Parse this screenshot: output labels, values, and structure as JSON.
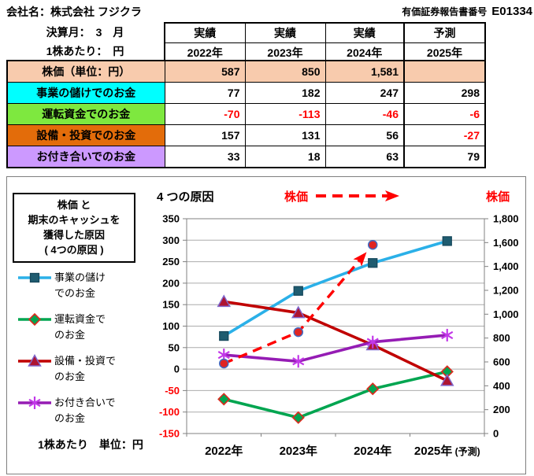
{
  "page": {
    "company_title": "会社名：株式会社 フジクラ",
    "report_label": "有価証券報告書番号",
    "report_number": "E01334",
    "fiscal_month": "決算月：　3　月",
    "per_share": "1株あたり：　円"
  },
  "table": {
    "status_headers": [
      "実績",
      "実績",
      "実績",
      "予測"
    ],
    "year_headers": [
      "2022年",
      "2023年",
      "2024年",
      "2025年"
    ],
    "negative_color": "#FF0000",
    "rows": [
      {
        "label": "株価（単位：円）",
        "bg": "#F8CBAD",
        "row_bg": "#F8CBAD",
        "values": [
          "587",
          "850",
          "1,581",
          ""
        ]
      },
      {
        "label": "事業の儲けでのお金",
        "bg": "#00FFFF",
        "values": [
          "77",
          "182",
          "247",
          "298"
        ]
      },
      {
        "label": "運転資金でのお金",
        "bg": "#7EE83F",
        "values": [
          "-70",
          "-113",
          "-46",
          "-6"
        ]
      },
      {
        "label": "設備・投資でのお金",
        "bg": "#E36C0A",
        "values": [
          "157",
          "131",
          "56",
          "-27"
        ]
      },
      {
        "label": "お付き合いでのお金",
        "bg": "#CC99FF",
        "values": [
          "33",
          "18",
          "63",
          "79"
        ]
      }
    ]
  },
  "legend": {
    "title_line1": "株価 と",
    "title_line2": "期末のキャッシュを",
    "title_line3": "獲得した原因",
    "title_line4": "( 4つの原因 )",
    "items": [
      {
        "line1": "事業の儲け",
        "line2": "でのお金"
      },
      {
        "line1": "運転資金で",
        "line2": "のお金"
      },
      {
        "line1": "設備・投資で",
        "line2": "のお金"
      },
      {
        "line1": "お付き合いで",
        "line2": "のお金"
      }
    ],
    "footer": "1株あたり　単位：円"
  },
  "chart_data": {
    "type": "line",
    "title": "4 つの原因",
    "secondary_title": "株価",
    "right_axis_title": "株価",
    "title_color": "#000000",
    "stock_color": "#FF0000",
    "categories": [
      "2022年",
      "2023年",
      "2024年",
      "2025年 (予測)"
    ],
    "series": [
      {
        "name": "事業の儲けでのお金",
        "axis": "left",
        "marker": "square",
        "line_color": "#2BB0E8",
        "marker_fill": "#1F5C70",
        "marker_stroke": "#16485C",
        "values": [
          77,
          182,
          247,
          298
        ]
      },
      {
        "name": "運転資金でのお金",
        "axis": "left",
        "marker": "diamond",
        "line_color": "#00A550",
        "marker_fill": "#00A550",
        "marker_stroke": "#DD2A1E",
        "values": [
          -70,
          -113,
          -46,
          -6
        ]
      },
      {
        "name": "設備・投資でのお金",
        "axis": "left",
        "marker": "triangle",
        "line_color": "#C00000",
        "marker_fill": "#AE1431",
        "marker_stroke": "#8066CC",
        "values": [
          157,
          131,
          56,
          -27
        ]
      },
      {
        "name": "お付き合いでのお金",
        "axis": "left",
        "marker": "asterisk",
        "line_color": "#951CB4",
        "marker_stroke": "#C238E8",
        "values": [
          33,
          18,
          63,
          79
        ]
      },
      {
        "name": "株価",
        "axis": "right",
        "marker": "circle",
        "line_color": "#FF0000",
        "marker_fill": "#E02421",
        "marker_stroke": "#3F6AC4",
        "dashed": true,
        "arrow_at_end": true,
        "values": [
          587,
          850,
          1581,
          null
        ]
      }
    ],
    "left_axis": {
      "min": -150,
      "max": 350,
      "step": 50,
      "negative_color": "#FF0000"
    },
    "right_axis": {
      "min": 0,
      "max": 1800,
      "step": 200
    },
    "grid": true,
    "legend_position": "left"
  }
}
